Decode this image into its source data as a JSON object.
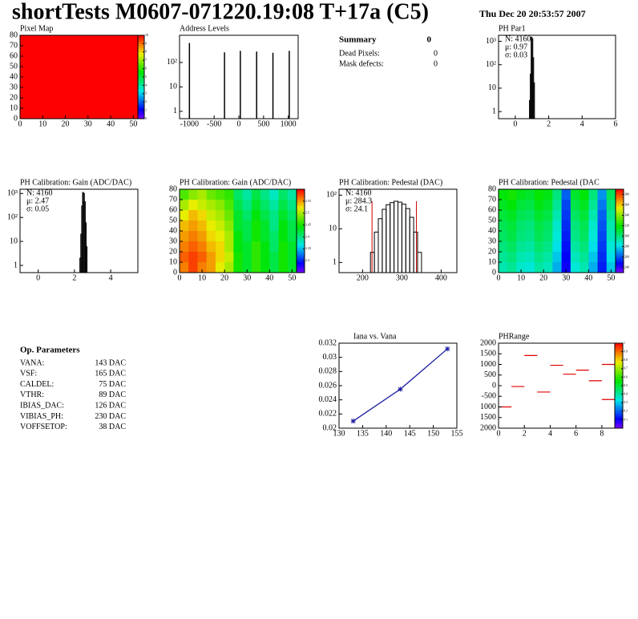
{
  "header": {
    "title": "shortTests M0607-071220.19:08 T+17a (C5)",
    "date": "Thu Dec 20 20:53:57 2007"
  },
  "summary": {
    "rows": [
      [
        "Summary",
        "0"
      ],
      [
        "Dead Pixels:",
        "0"
      ],
      [
        "Mask defects:",
        "0"
      ]
    ]
  },
  "op_parameters": {
    "title": "Op. Parameters",
    "rows": [
      [
        "VANA:",
        "143 DAC"
      ],
      [
        "VSF:",
        "165 DAC"
      ],
      [
        "CALDEL:",
        "75 DAC"
      ],
      [
        "VTHR:",
        "89 DAC"
      ],
      [
        "IBIAS_DAC:",
        "126 DAC"
      ],
      [
        "VIBIAS_PH:",
        "230 DAC"
      ],
      [
        "VOFFSETOP:",
        "38 DAC"
      ]
    ]
  },
  "chart_data": [
    {
      "type": "heatmap",
      "title": "Pixel Map",
      "xlim": [
        0,
        52
      ],
      "ylim": [
        0,
        80
      ],
      "xticks": [
        0,
        10,
        20,
        30,
        40,
        50
      ],
      "yticks": [
        0,
        10,
        20,
        30,
        40,
        50,
        60,
        70,
        80
      ],
      "zlim": [
        0,
        10
      ],
      "zticks": [
        0,
        1,
        2,
        3,
        4,
        5,
        6,
        7,
        8,
        9,
        10
      ],
      "values": [
        [
          10
        ]
      ]
    },
    {
      "type": "spikes",
      "title": "Address Levels",
      "log_y": true,
      "color": "#000000",
      "xlim": [
        -1200,
        1200
      ],
      "ylim": [
        0.5,
        1300
      ],
      "xticks": [
        -1000,
        -500,
        0,
        500,
        1000
      ],
      "yticks": [
        1,
        10,
        {
          "value": 100,
          "label": "10²"
        }
      ],
      "x": [
        -1000,
        -290,
        30,
        360,
        690,
        1020
      ],
      "values": [
        630,
        260,
        300,
        280,
        250,
        300
      ]
    },
    {
      "type": "histogram",
      "title": "PH Par1",
      "log_y": true,
      "color": "#000000",
      "xlim": [
        -1,
        6
      ],
      "ylim": [
        0.5,
        1800
      ],
      "xticks": [
        0,
        2,
        4,
        6
      ],
      "yticks": [
        1,
        10,
        {
          "value": 100,
          "label": "10²"
        },
        {
          "value": 1000,
          "label": "10³"
        }
      ],
      "stats": [
        {
          "text": "N: 4160",
          "color": "#000000"
        },
        {
          "text": "μ: 0.97",
          "color": "#000000"
        },
        {
          "text": "σ: 0.03",
          "color": "#000000"
        }
      ],
      "bins": [
        0.85,
        0.9,
        0.95,
        1.0,
        1.05,
        1.1,
        1.15
      ],
      "values": [
        3,
        40,
        1500,
        1300,
        200,
        17
      ]
    },
    {
      "type": "histogram",
      "title": "PH Calibration: Gain (ADC/DAC)",
      "log_y": true,
      "color": "#000000",
      "xlim": [
        -1,
        5.5
      ],
      "ylim": [
        0.5,
        1500
      ],
      "xticks": [
        0,
        2,
        4
      ],
      "yticks": [
        1,
        10,
        {
          "value": 100,
          "label": "10²"
        },
        {
          "value": 1000,
          "label": "10³"
        }
      ],
      "stats": [
        {
          "text": "N: 4160",
          "color": "#000000"
        },
        {
          "text": "μ: 2.47",
          "color": "#000000"
        },
        {
          "text": "σ: 0.05",
          "color": "#000000"
        }
      ],
      "bins": [
        2.3,
        2.35,
        2.4,
        2.45,
        2.5,
        2.55,
        2.6,
        2.65,
        2.7
      ],
      "values": [
        2,
        20,
        300,
        1100,
        1000,
        450,
        60,
        6
      ]
    },
    {
      "type": "heatmap",
      "title": "PH Calibration: Gain (ADC/DAC)",
      "xlim": [
        0,
        52
      ],
      "ylim": [
        0,
        80
      ],
      "xticks": [
        0,
        10,
        20,
        30,
        40,
        50
      ],
      "yticks": [
        0,
        10,
        20,
        30,
        40,
        50,
        60,
        70,
        80
      ],
      "zlim": [
        2.25,
        2.6
      ],
      "zticks": [
        2.3,
        2.35,
        2.4,
        2.45,
        2.5,
        2.55
      ],
      "values": [
        [
          2.47,
          2.49,
          2.5,
          2.48,
          2.47,
          2.46,
          2.41,
          2.39,
          2.42,
          2.4,
          2.38,
          2.41,
          2.39
        ],
        [
          2.5,
          2.52,
          2.51,
          2.5,
          2.49,
          2.47,
          2.42,
          2.4,
          2.43,
          2.41,
          2.39,
          2.42,
          2.4
        ],
        [
          2.52,
          2.54,
          2.53,
          2.51,
          2.5,
          2.48,
          2.43,
          2.41,
          2.44,
          2.42,
          2.4,
          2.43,
          2.41
        ],
        [
          2.54,
          2.55,
          2.54,
          2.52,
          2.51,
          2.49,
          2.43,
          2.42,
          2.45,
          2.43,
          2.4,
          2.44,
          2.42
        ],
        [
          2.55,
          2.56,
          2.55,
          2.53,
          2.52,
          2.5,
          2.44,
          2.42,
          2.45,
          2.43,
          2.41,
          2.44,
          2.42
        ],
        [
          2.56,
          2.57,
          2.56,
          2.54,
          2.53,
          2.5,
          2.44,
          2.43,
          2.46,
          2.44,
          2.41,
          2.45,
          2.43
        ],
        [
          2.57,
          2.58,
          2.57,
          2.55,
          2.53,
          2.51,
          2.45,
          2.43,
          2.46,
          2.44,
          2.42,
          2.45,
          2.43
        ],
        [
          2.56,
          2.58,
          2.56,
          2.55,
          2.52,
          2.5,
          2.45,
          2.43,
          2.46,
          2.44,
          2.42,
          2.45,
          2.43
        ]
      ]
    },
    {
      "type": "histogram",
      "title": "PH Calibration: Pedestal (DAC)",
      "log_y": true,
      "color": "#000000",
      "xlim": [
        140,
        440
      ],
      "ylim": [
        0.5,
        150
      ],
      "xticks": [
        200,
        300,
        400
      ],
      "yticks": [
        1,
        10,
        {
          "value": 100,
          "label": "10²"
        }
      ],
      "stats": [
        {
          "text": "N: 4160",
          "color": "#000000"
        },
        {
          "text": "μ: 284.3",
          "color": "#d00000"
        },
        {
          "text": "σ: 24.1",
          "color": "#d00000"
        }
      ],
      "cut_color": "#d00000",
      "cuts": [
        224,
        337
      ],
      "bins": [
        220,
        230,
        240,
        250,
        260,
        270,
        280,
        290,
        300,
        310,
        320,
        330,
        340,
        350
      ],
      "values": [
        2,
        8,
        20,
        38,
        52,
        60,
        66,
        62,
        54,
        40,
        22,
        8,
        2
      ]
    },
    {
      "type": "heatmap",
      "title": "PH Calibration: Pedestal (DAC",
      "xlim": [
        0,
        52
      ],
      "ylim": [
        0,
        80
      ],
      "xticks": [
        0,
        10,
        20,
        30,
        40,
        50
      ],
      "yticks": [
        0,
        10,
        20,
        30,
        40,
        50,
        60,
        70,
        80
      ],
      "zlim": [
        230,
        390
      ],
      "zticks": [
        240,
        260,
        280,
        300,
        320,
        340,
        360,
        380
      ],
      "values": [
        [
          318,
          322,
          315,
          312,
          320,
          316,
          300,
          262,
          312,
          318,
          300,
          270,
          305
        ],
        [
          314,
          318,
          310,
          308,
          316,
          312,
          296,
          258,
          308,
          314,
          296,
          266,
          300
        ],
        [
          310,
          314,
          306,
          304,
          312,
          308,
          292,
          256,
          304,
          310,
          292,
          262,
          296
        ],
        [
          306,
          310,
          302,
          300,
          308,
          304,
          288,
          254,
          300,
          306,
          288,
          260,
          292
        ],
        [
          304,
          308,
          300,
          298,
          306,
          302,
          286,
          252,
          298,
          304,
          286,
          258,
          290
        ],
        [
          300,
          304,
          296,
          294,
          302,
          298,
          282,
          250,
          294,
          300,
          282,
          256,
          286
        ],
        [
          296,
          300,
          292,
          290,
          298,
          294,
          278,
          248,
          290,
          296,
          278,
          254,
          282
        ],
        [
          292,
          296,
          288,
          286,
          294,
          290,
          274,
          246,
          286,
          292,
          274,
          252,
          278
        ]
      ]
    },
    {
      "type": "line",
      "title": "Iana vs. Vana",
      "color": "#1a1aa0",
      "xlim": [
        130,
        155
      ],
      "ylim": [
        0.02,
        0.032
      ],
      "xticks": [
        130,
        135,
        140,
        145,
        150,
        155
      ],
      "yticks": [
        0.02,
        0.022,
        0.024,
        0.026,
        0.028,
        0.03,
        0.032
      ],
      "x": [
        133,
        143,
        153
      ],
      "values": [
        0.021,
        0.0255,
        0.0312
      ]
    },
    {
      "type": "segments",
      "title": "PHRange",
      "color": "#e00000",
      "xlim": [
        0,
        9
      ],
      "ylim": [
        -2000,
        2000
      ],
      "xticks": [
        0,
        2,
        4,
        6,
        8
      ],
      "yticks": [
        {
          "value": 2000,
          "label": "2000"
        },
        {
          "value": 1500,
          "label": "1500"
        },
        {
          "value": 1000,
          "label": "1000"
        },
        {
          "value": 500,
          "label": "500"
        },
        0,
        -500,
        {
          "value": -1000,
          "label": "1000"
        },
        {
          "value": -1500,
          "label": "1500"
        },
        {
          "value": -2000,
          "label": "2000"
        }
      ],
      "zlim": [
        0,
        1
      ],
      "zticks": [
        0.1,
        0.2,
        0.3,
        0.4,
        0.5,
        0.6,
        0.7,
        0.8,
        0.9,
        1
      ],
      "x": [
        0,
        1,
        2,
        3,
        4,
        5,
        6,
        7,
        8,
        8
      ],
      "values": [
        -1000,
        -40,
        1420,
        -300,
        960,
        540,
        730,
        230,
        1000,
        -650
      ]
    }
  ]
}
